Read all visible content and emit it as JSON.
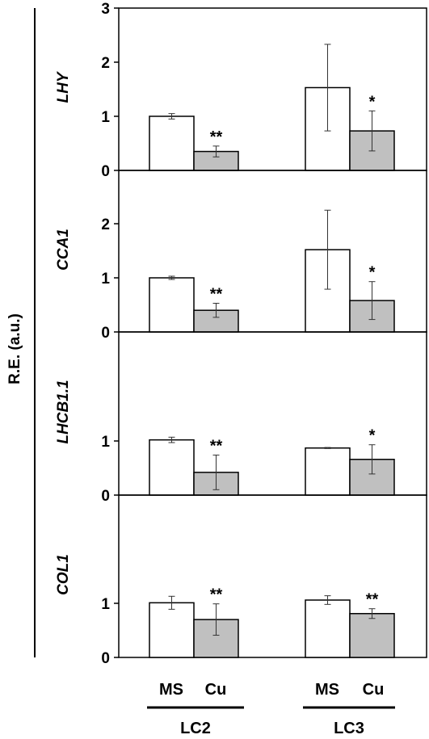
{
  "figure": {
    "y_axis_label": "R.E. (a.u.)",
    "group_labels": [
      "LC2",
      "LC3"
    ],
    "condition_labels": [
      "MS",
      "Cu"
    ],
    "colors": {
      "MS": "#ffffff",
      "Cu": "#c0c0c0",
      "outline": "#000000"
    }
  },
  "chart_data": [
    {
      "type": "bar",
      "gene": "LHY",
      "categories": [
        "LC2",
        "LC3"
      ],
      "series": [
        {
          "name": "MS",
          "values": [
            1.0,
            1.53
          ],
          "errors": [
            0.05,
            0.8
          ]
        },
        {
          "name": "Cu",
          "values": [
            0.35,
            0.73
          ],
          "errors": [
            0.1,
            0.37
          ]
        }
      ],
      "significance": [
        "**",
        "*"
      ],
      "ylim": [
        0,
        3
      ],
      "yticks": [
        0,
        1,
        2,
        3
      ]
    },
    {
      "type": "bar",
      "gene": "CCA1",
      "categories": [
        "LC2",
        "LC3"
      ],
      "series": [
        {
          "name": "MS",
          "values": [
            1.0,
            1.52
          ],
          "errors": [
            0.03,
            0.73
          ]
        },
        {
          "name": "Cu",
          "values": [
            0.4,
            0.58
          ],
          "errors": [
            0.13,
            0.35
          ]
        }
      ],
      "significance": [
        "**",
        "*"
      ],
      "ylim": [
        0,
        3
      ],
      "yticks": [
        0,
        1,
        2
      ]
    },
    {
      "type": "bar",
      "gene": "LHCB1.1",
      "categories": [
        "LC2",
        "LC3"
      ],
      "series": [
        {
          "name": "MS",
          "values": [
            1.02,
            0.87
          ],
          "errors": [
            0.05,
            0.01
          ]
        },
        {
          "name": "Cu",
          "values": [
            0.42,
            0.66
          ],
          "errors": [
            0.32,
            0.27
          ]
        }
      ],
      "significance": [
        "**",
        "*"
      ],
      "ylim": [
        0,
        2
      ],
      "yticks": [
        0,
        1
      ]
    },
    {
      "type": "bar",
      "gene": "COL1",
      "categories": [
        "LC2",
        "LC3"
      ],
      "series": [
        {
          "name": "MS",
          "values": [
            1.01,
            1.06
          ],
          "errors": [
            0.12,
            0.08
          ]
        },
        {
          "name": "Cu",
          "values": [
            0.7,
            0.81
          ],
          "errors": [
            0.29,
            0.09
          ]
        }
      ],
      "significance": [
        "**",
        "**"
      ],
      "ylim": [
        0,
        2
      ],
      "yticks": [
        0,
        1
      ]
    }
  ]
}
